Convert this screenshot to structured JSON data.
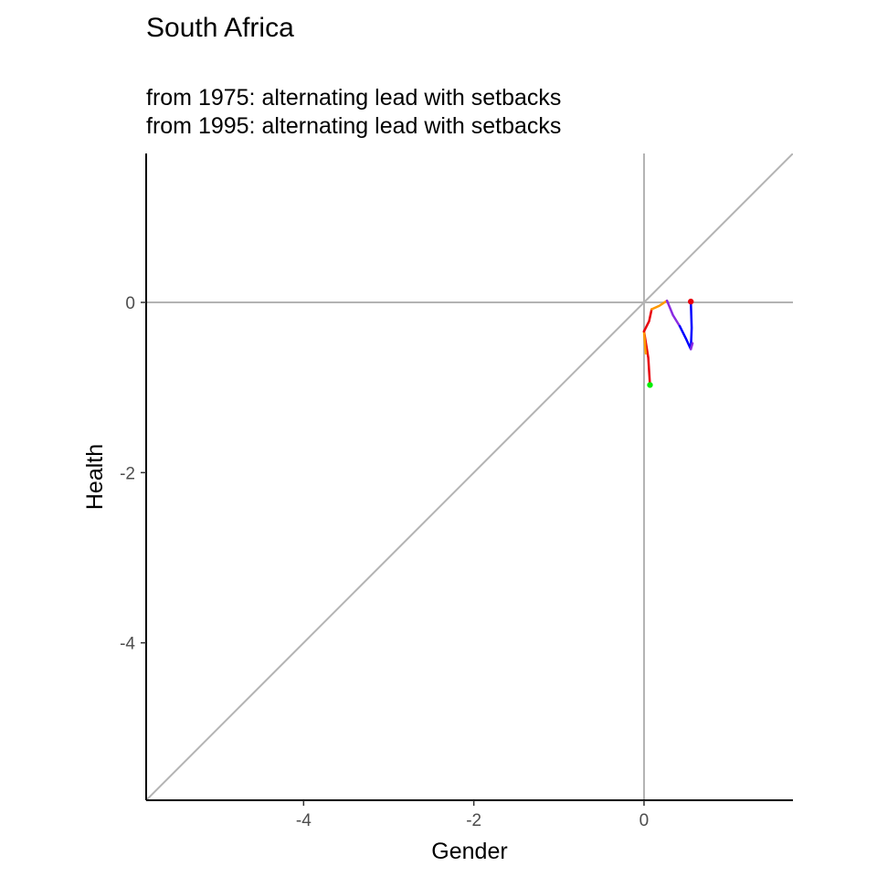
{
  "chart_data": {
    "type": "line",
    "title": "South Africa",
    "subtitle_lines": [
      "from 1975:  alternating lead with setbacks",
      "from 1995:  alternating lead with setbacks"
    ],
    "xlabel": "Gender",
    "ylabel": "Health",
    "xlim": [
      -5.85,
      1.75
    ],
    "ylim": [
      -5.85,
      1.75
    ],
    "x_ticks": [
      {
        "value": -4,
        "label": "-4"
      },
      {
        "value": -2,
        "label": "-2"
      },
      {
        "value": 0,
        "label": "0"
      }
    ],
    "y_ticks": [
      {
        "value": 0,
        "label": "0"
      },
      {
        "value": -2,
        "label": "-2"
      },
      {
        "value": -4,
        "label": "-4"
      }
    ],
    "reference_lines": {
      "color": "#b3b3b3",
      "horizontal_zero": true,
      "vertical_zero": true,
      "diagonal_identity": true
    },
    "segments": [
      {
        "color": "#e8000b",
        "points": [
          [
            0.07,
            -0.97
          ],
          [
            0.05,
            -0.65
          ],
          [
            0.0,
            -0.34
          ]
        ]
      },
      {
        "color": "#ff9900",
        "points": [
          [
            0.0,
            -0.34
          ],
          [
            0.02,
            -0.6
          ]
        ]
      },
      {
        "color": "#e8000b",
        "points": [
          [
            0.0,
            -0.34
          ],
          [
            0.06,
            -0.22
          ],
          [
            0.09,
            -0.08
          ]
        ]
      },
      {
        "color": "#ff9900",
        "points": [
          [
            0.09,
            -0.08
          ],
          [
            0.18,
            -0.04
          ],
          [
            0.27,
            0.02
          ]
        ]
      },
      {
        "color": "#8a2be2",
        "points": [
          [
            0.27,
            0.02
          ],
          [
            0.34,
            -0.15
          ],
          [
            0.42,
            -0.28
          ]
        ]
      },
      {
        "color": "#0000ff",
        "points": [
          [
            0.42,
            -0.28
          ],
          [
            0.49,
            -0.42
          ],
          [
            0.55,
            -0.55
          ],
          [
            0.56,
            -0.3
          ],
          [
            0.55,
            0.01
          ]
        ]
      },
      {
        "color": "#8a2be2",
        "points": [
          [
            0.55,
            -0.55
          ],
          [
            0.57,
            -0.48
          ]
        ]
      }
    ],
    "start_point": {
      "x": 0.07,
      "y": -0.97,
      "color": "#00ee00"
    },
    "end_point": {
      "x": 0.55,
      "y": 0.01,
      "color": "#e8000b"
    },
    "grid": false,
    "legend": "none"
  }
}
